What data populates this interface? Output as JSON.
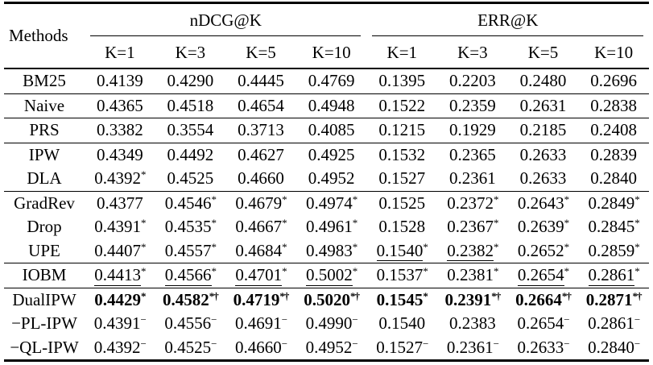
{
  "table": {
    "methods_header": "Methods",
    "col_groups": [
      {
        "label": "nDCG@K"
      },
      {
        "label": "ERR@K"
      }
    ],
    "k_headers": [
      "K=1",
      "K=3",
      "K=5",
      "K=10",
      "K=1",
      "K=3",
      "K=5",
      "K=10"
    ],
    "rows": [
      {
        "method": "BM25",
        "rule": true,
        "cells": [
          {
            "v": "0.4139"
          },
          {
            "v": "0.4290"
          },
          {
            "v": "0.4445"
          },
          {
            "v": "0.4769"
          },
          {
            "v": "0.1395"
          },
          {
            "v": "0.2203"
          },
          {
            "v": "0.2480"
          },
          {
            "v": "0.2696"
          }
        ]
      },
      {
        "method": "Naive",
        "rule": true,
        "cells": [
          {
            "v": "0.4365"
          },
          {
            "v": "0.4518"
          },
          {
            "v": "0.4654"
          },
          {
            "v": "0.4948"
          },
          {
            "v": "0.1522"
          },
          {
            "v": "0.2359"
          },
          {
            "v": "0.2631"
          },
          {
            "v": "0.2838"
          }
        ]
      },
      {
        "method": "PRS",
        "rule": true,
        "cells": [
          {
            "v": "0.3382"
          },
          {
            "v": "0.3554"
          },
          {
            "v": "0.3713"
          },
          {
            "v": "0.4085"
          },
          {
            "v": "0.1215"
          },
          {
            "v": "0.1929"
          },
          {
            "v": "0.2185"
          },
          {
            "v": "0.2408"
          }
        ]
      },
      {
        "method": "IPW",
        "rule": false,
        "cells": [
          {
            "v": "0.4349"
          },
          {
            "v": "0.4492"
          },
          {
            "v": "0.4627"
          },
          {
            "v": "0.4925"
          },
          {
            "v": "0.1532"
          },
          {
            "v": "0.2365"
          },
          {
            "v": "0.2633"
          },
          {
            "v": "0.2839"
          }
        ]
      },
      {
        "method": "DLA",
        "rule": true,
        "cells": [
          {
            "v": "0.4392",
            "s": "*"
          },
          {
            "v": "0.4525"
          },
          {
            "v": "0.4660"
          },
          {
            "v": "0.4952"
          },
          {
            "v": "0.1527"
          },
          {
            "v": "0.2361"
          },
          {
            "v": "0.2633"
          },
          {
            "v": "0.2840"
          }
        ]
      },
      {
        "method": "GradRev",
        "rule": false,
        "cells": [
          {
            "v": "0.4377"
          },
          {
            "v": "0.4546",
            "s": "*"
          },
          {
            "v": "0.4679",
            "s": "*"
          },
          {
            "v": "0.4974",
            "s": "*"
          },
          {
            "v": "0.1525"
          },
          {
            "v": "0.2372",
            "s": "*"
          },
          {
            "v": "0.2643",
            "s": "*"
          },
          {
            "v": "0.2849",
            "s": "*"
          }
        ]
      },
      {
        "method": "Drop",
        "rule": false,
        "cells": [
          {
            "v": "0.4391",
            "s": "*"
          },
          {
            "v": "0.4535",
            "s": "*"
          },
          {
            "v": "0.4667",
            "s": "*"
          },
          {
            "v": "0.4961",
            "s": "*"
          },
          {
            "v": "0.1528"
          },
          {
            "v": "0.2367",
            "s": "*"
          },
          {
            "v": "0.2639",
            "s": "*"
          },
          {
            "v": "0.2845",
            "s": "*"
          }
        ]
      },
      {
        "method": "UPE",
        "rule": true,
        "cells": [
          {
            "v": "0.4407",
            "s": "*"
          },
          {
            "v": "0.4557",
            "s": "*"
          },
          {
            "v": "0.4684",
            "s": "*"
          },
          {
            "v": "0.4983",
            "s": "*"
          },
          {
            "v": "0.1540",
            "s": "*",
            "u": true
          },
          {
            "v": "0.2382",
            "s": "*",
            "u": true
          },
          {
            "v": "0.2652",
            "s": "*"
          },
          {
            "v": "0.2859",
            "s": "*"
          }
        ]
      },
      {
        "method": "IOBM",
        "rule": true,
        "cells": [
          {
            "v": "0.4413",
            "s": "*",
            "u": true
          },
          {
            "v": "0.4566",
            "s": "*",
            "u": true
          },
          {
            "v": "0.4701",
            "s": "*",
            "u": true
          },
          {
            "v": "0.5002",
            "s": "*",
            "u": true
          },
          {
            "v": "0.1537",
            "s": "*"
          },
          {
            "v": "0.2381",
            "s": "*"
          },
          {
            "v": "0.2654",
            "s": "*",
            "u": true
          },
          {
            "v": "0.2861",
            "s": "*",
            "u": true
          }
        ]
      },
      {
        "method": "DualIPW",
        "rule": false,
        "cells": [
          {
            "v": "0.4429",
            "s": "*",
            "b": true
          },
          {
            "v": "0.4582",
            "s": "*†",
            "b": true
          },
          {
            "v": "0.4719",
            "s": "*†",
            "b": true
          },
          {
            "v": "0.5020",
            "s": "*†",
            "b": true
          },
          {
            "v": "0.1545",
            "s": "*",
            "b": true
          },
          {
            "v": "0.2391",
            "s": "*†",
            "b": true
          },
          {
            "v": "0.2664",
            "s": "*†",
            "b": true
          },
          {
            "v": "0.2871",
            "s": "*†",
            "b": true
          }
        ]
      },
      {
        "method": "−PL-IPW",
        "rule": false,
        "cells": [
          {
            "v": "0.4391",
            "s": "−"
          },
          {
            "v": "0.4556",
            "s": "−"
          },
          {
            "v": "0.4691",
            "s": "−"
          },
          {
            "v": "0.4990",
            "s": "−"
          },
          {
            "v": "0.1540"
          },
          {
            "v": "0.2383"
          },
          {
            "v": "0.2654",
            "s": "−"
          },
          {
            "v": "0.2861",
            "s": "−"
          }
        ]
      },
      {
        "method": "−QL-IPW",
        "rule": false,
        "cells": [
          {
            "v": "0.4392",
            "s": "−"
          },
          {
            "v": "0.4525",
            "s": "−"
          },
          {
            "v": "0.4660",
            "s": "−"
          },
          {
            "v": "0.4952",
            "s": "−"
          },
          {
            "v": "0.1527",
            "s": "−"
          },
          {
            "v": "0.2361",
            "s": "−"
          },
          {
            "v": "0.2633",
            "s": "−"
          },
          {
            "v": "0.2840",
            "s": "−"
          }
        ]
      }
    ]
  }
}
